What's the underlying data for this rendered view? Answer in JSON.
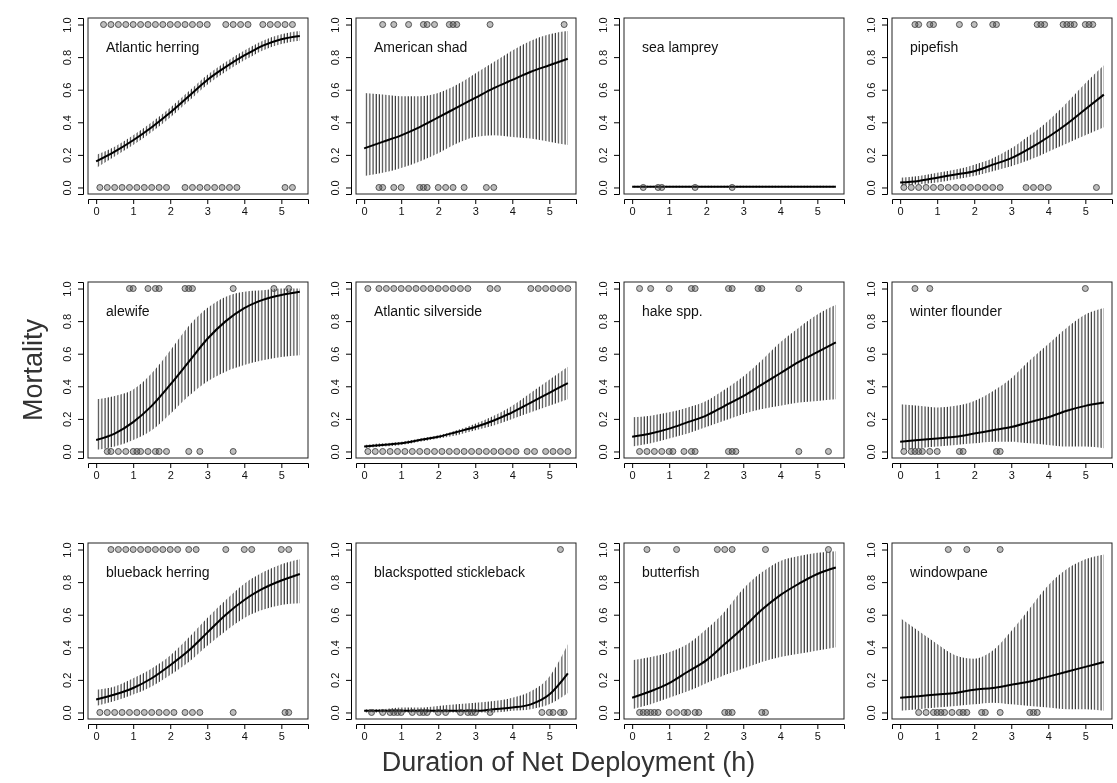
{
  "chart_data": [
    {
      "type": "line",
      "title": "Atlantic herring",
      "x": [
        0,
        0.5,
        1,
        1.5,
        2,
        2.5,
        3,
        3.5,
        4,
        4.5,
        5,
        5.5
      ],
      "xlim": [
        -0.22,
        5.72
      ],
      "ylim": [
        -0.04,
        1.04
      ],
      "xticks": [
        0,
        1,
        2,
        3,
        4,
        5
      ],
      "yticks": [
        {
          "value": 0,
          "label": "0.0"
        },
        {
          "value": 0.2,
          "label": "0.2"
        },
        {
          "value": 0.4,
          "label": "0.4"
        },
        {
          "value": 0.6,
          "label": "0.6"
        },
        {
          "value": 0.8,
          "label": "0.8"
        },
        {
          "value": 1,
          "label": "1.0"
        }
      ],
      "series": [
        {
          "type": "line",
          "color": "#000000",
          "marker": "none",
          "values": [
            0.16,
            0.22,
            0.29,
            0.37,
            0.46,
            0.56,
            0.66,
            0.74,
            0.81,
            0.87,
            0.91,
            0.93
          ],
          "lower": [
            0.12,
            0.19,
            0.26,
            0.34,
            0.43,
            0.53,
            0.63,
            0.71,
            0.78,
            0.84,
            0.88,
            0.9
          ],
          "upper": [
            0.2,
            0.25,
            0.32,
            0.4,
            0.49,
            0.59,
            0.69,
            0.77,
            0.84,
            0.9,
            0.94,
            0.96
          ]
        },
        {
          "type": "scatter",
          "color": "#444444",
          "marker": "circle",
          "x": [
            0.2,
            0.4,
            0.6,
            0.8,
            1.0,
            1.2,
            1.4,
            1.6,
            1.8,
            2.0,
            2.2,
            2.4,
            2.6,
            2.8,
            3.0,
            3.5,
            3.7,
            3.9,
            4.1,
            4.5,
            4.7,
            4.9,
            5.1,
            5.3
          ],
          "values": [
            1,
            1,
            1,
            1,
            1,
            1,
            1,
            1,
            1,
            1,
            1,
            1,
            1,
            1,
            1,
            1,
            1,
            1,
            1,
            1,
            1,
            1,
            1,
            1
          ]
        },
        {
          "type": "scatter",
          "color": "#444444",
          "marker": "circle",
          "x": [
            0.1,
            0.3,
            0.5,
            0.7,
            0.9,
            1.1,
            1.3,
            1.5,
            1.7,
            1.9,
            2.4,
            2.6,
            2.8,
            3.0,
            3.2,
            3.4,
            3.6,
            3.8,
            5.1,
            5.3
          ],
          "values": [
            0,
            0,
            0,
            0,
            0,
            0,
            0,
            0,
            0,
            0,
            0,
            0,
            0,
            0,
            0,
            0,
            0,
            0,
            0,
            0
          ]
        }
      ]
    },
    {
      "type": "line",
      "title": "American shad",
      "x": [
        0,
        0.5,
        1,
        1.5,
        2,
        2.5,
        3,
        3.5,
        4,
        4.5,
        5,
        5.5
      ],
      "xlim": [
        -0.22,
        5.72
      ],
      "ylim": [
        -0.04,
        1.04
      ],
      "xticks": [
        0,
        1,
        2,
        3,
        4,
        5
      ],
      "yticks": [
        {
          "value": 0,
          "label": "0.0"
        },
        {
          "value": 0.2,
          "label": "0.2"
        },
        {
          "value": 0.4,
          "label": "0.4"
        },
        {
          "value": 0.6,
          "label": "0.6"
        },
        {
          "value": 0.8,
          "label": "0.8"
        },
        {
          "value": 1,
          "label": "1.0"
        }
      ],
      "series": [
        {
          "type": "line",
          "color": "#000000",
          "marker": "none",
          "values": [
            0.24,
            0.28,
            0.32,
            0.37,
            0.43,
            0.49,
            0.55,
            0.61,
            0.66,
            0.71,
            0.75,
            0.79
          ],
          "lower": [
            0.07,
            0.09,
            0.12,
            0.16,
            0.21,
            0.27,
            0.31,
            0.32,
            0.31,
            0.3,
            0.28,
            0.26
          ],
          "upper": [
            0.58,
            0.57,
            0.56,
            0.56,
            0.58,
            0.63,
            0.7,
            0.77,
            0.84,
            0.9,
            0.94,
            0.96
          ]
        },
        {
          "type": "scatter",
          "color": "#444444",
          "marker": "circle",
          "x": [
            0.5,
            0.8,
            1.2,
            1.6,
            1.7,
            1.9,
            2.3,
            2.4,
            2.5,
            3.4,
            5.4
          ],
          "values": [
            1,
            1,
            1,
            1,
            1,
            1,
            1,
            1,
            1,
            1,
            1
          ]
        },
        {
          "type": "scatter",
          "color": "#444444",
          "marker": "circle",
          "x": [
            0.4,
            0.5,
            0.8,
            1.0,
            1.5,
            1.6,
            1.7,
            2.0,
            2.2,
            2.4,
            2.7,
            3.3,
            3.5
          ],
          "values": [
            0,
            0,
            0,
            0,
            0,
            0,
            0,
            0,
            0,
            0,
            0,
            0,
            0
          ]
        }
      ]
    },
    {
      "type": "line",
      "title": "sea lamprey",
      "x": [
        0,
        0.5,
        1,
        1.5,
        2,
        2.5,
        3,
        3.5,
        4,
        4.5,
        5,
        5.5
      ],
      "xlim": [
        -0.22,
        5.72
      ],
      "ylim": [
        -0.04,
        1.04
      ],
      "xticks": [
        0,
        1,
        2,
        3,
        4,
        5
      ],
      "yticks": [
        {
          "value": 0,
          "label": "0.0"
        },
        {
          "value": 0.2,
          "label": "0.2"
        },
        {
          "value": 0.4,
          "label": "0.4"
        },
        {
          "value": 0.6,
          "label": "0.6"
        },
        {
          "value": 0.8,
          "label": "0.8"
        },
        {
          "value": 1,
          "label": "1.0"
        }
      ],
      "series": [
        {
          "type": "line",
          "color": "#000000",
          "marker": "none",
          "values": [
            0.005,
            0.005,
            0.005,
            0.005,
            0.005,
            0.005,
            0.005,
            0.005,
            0.005,
            0.005,
            0.005,
            0.005
          ],
          "lower": [
            0,
            0,
            0,
            0,
            0,
            0,
            0,
            0,
            0,
            0,
            0,
            0
          ],
          "upper": [
            0.01,
            0.01,
            0.01,
            0.01,
            0.01,
            0.01,
            0.01,
            0.01,
            0.01,
            0.01,
            0.01,
            0.01
          ]
        },
        {
          "type": "scatter",
          "color": "#444444",
          "marker": "circle",
          "x": [
            0.3,
            0.7,
            0.8,
            1.7,
            2.7
          ],
          "values": [
            0,
            0,
            0,
            0,
            0
          ]
        }
      ]
    },
    {
      "type": "line",
      "title": "pipefish",
      "x": [
        0,
        0.5,
        1,
        1.5,
        2,
        2.5,
        3,
        3.5,
        4,
        4.5,
        5,
        5.5
      ],
      "xlim": [
        -0.22,
        5.72
      ],
      "ylim": [
        -0.04,
        1.04
      ],
      "xticks": [
        0,
        1,
        2,
        3,
        4,
        5
      ],
      "yticks": [
        {
          "value": 0,
          "label": "0.0"
        },
        {
          "value": 0.2,
          "label": "0.2"
        },
        {
          "value": 0.4,
          "label": "0.4"
        },
        {
          "value": 0.6,
          "label": "0.6"
        },
        {
          "value": 0.8,
          "label": "0.8"
        },
        {
          "value": 1,
          "label": "1.0"
        }
      ],
      "series": [
        {
          "type": "line",
          "color": "#000000",
          "marker": "none",
          "values": [
            0.03,
            0.04,
            0.06,
            0.08,
            0.1,
            0.14,
            0.18,
            0.24,
            0.31,
            0.39,
            0.48,
            0.57
          ],
          "lower": [
            0.01,
            0.02,
            0.03,
            0.05,
            0.07,
            0.1,
            0.13,
            0.17,
            0.22,
            0.27,
            0.32,
            0.37
          ],
          "upper": [
            0.06,
            0.07,
            0.09,
            0.11,
            0.14,
            0.18,
            0.24,
            0.32,
            0.41,
            0.52,
            0.64,
            0.75
          ]
        },
        {
          "type": "scatter",
          "color": "#444444",
          "marker": "circle",
          "x": [
            0.4,
            0.5,
            0.8,
            0.9,
            1.6,
            2.0,
            2.5,
            2.6,
            3.7,
            3.8,
            3.9,
            4.4,
            4.5,
            4.6,
            4.7,
            5.0,
            5.1,
            5.2
          ],
          "values": [
            1,
            1,
            1,
            1,
            1,
            1,
            1,
            1,
            1,
            1,
            1,
            1,
            1,
            1,
            1,
            1,
            1,
            1
          ]
        },
        {
          "type": "scatter",
          "color": "#444444",
          "marker": "circle",
          "x": [
            0.1,
            0.3,
            0.5,
            0.7,
            0.9,
            1.1,
            1.3,
            1.5,
            1.7,
            1.9,
            2.1,
            2.3,
            2.5,
            2.7,
            3.4,
            3.6,
            3.8,
            4.0,
            5.3
          ],
          "values": [
            0,
            0,
            0,
            0,
            0,
            0,
            0,
            0,
            0,
            0,
            0,
            0,
            0,
            0,
            0,
            0,
            0,
            0,
            0
          ]
        }
      ]
    },
    {
      "type": "line",
      "title": "alewife",
      "ylabel": "Mortality",
      "x": [
        0,
        0.5,
        1,
        1.5,
        2,
        2.5,
        3,
        3.5,
        4,
        4.5,
        5,
        5.5
      ],
      "xlim": [
        -0.22,
        5.72
      ],
      "ylim": [
        -0.04,
        1.04
      ],
      "xticks": [
        0,
        1,
        2,
        3,
        4,
        5
      ],
      "yticks": [
        {
          "value": 0,
          "label": "0.0"
        },
        {
          "value": 0.2,
          "label": "0.2"
        },
        {
          "value": 0.4,
          "label": "0.4"
        },
        {
          "value": 0.6,
          "label": "0.6"
        },
        {
          "value": 0.8,
          "label": "0.8"
        },
        {
          "value": 1,
          "label": "1.0"
        }
      ],
      "series": [
        {
          "type": "line",
          "color": "#000000",
          "marker": "none",
          "values": [
            0.07,
            0.11,
            0.18,
            0.28,
            0.41,
            0.55,
            0.69,
            0.8,
            0.88,
            0.93,
            0.96,
            0.98
          ],
          "lower": [
            0.01,
            0.03,
            0.07,
            0.13,
            0.23,
            0.34,
            0.43,
            0.49,
            0.53,
            0.56,
            0.58,
            0.59
          ],
          "upper": [
            0.32,
            0.34,
            0.38,
            0.48,
            0.62,
            0.77,
            0.88,
            0.95,
            0.98,
            0.99,
            1.0,
            1.0
          ]
        },
        {
          "type": "scatter",
          "color": "#444444",
          "marker": "circle",
          "x": [
            0.9,
            1.0,
            1.4,
            1.6,
            1.7,
            2.4,
            2.5,
            2.6,
            3.7,
            4.8,
            5.2
          ],
          "values": [
            1,
            1,
            1,
            1,
            1,
            1,
            1,
            1,
            1,
            1,
            1
          ]
        },
        {
          "type": "scatter",
          "color": "#444444",
          "marker": "circle",
          "x": [
            0.3,
            0.4,
            0.6,
            0.8,
            1.0,
            1.1,
            1.2,
            1.4,
            1.6,
            1.7,
            1.9,
            2.5,
            2.8,
            3.7
          ],
          "values": [
            0,
            0,
            0,
            0,
            0,
            0,
            0,
            0,
            0,
            0,
            0,
            0,
            0,
            0
          ]
        }
      ]
    },
    {
      "type": "line",
      "title": "Atlantic silverside",
      "x": [
        0,
        0.5,
        1,
        1.5,
        2,
        2.5,
        3,
        3.5,
        4,
        4.5,
        5,
        5.5
      ],
      "xlim": [
        -0.22,
        5.72
      ],
      "ylim": [
        -0.04,
        1.04
      ],
      "xticks": [
        0,
        1,
        2,
        3,
        4,
        5
      ],
      "yticks": [
        {
          "value": 0,
          "label": "0.0"
        },
        {
          "value": 0.2,
          "label": "0.2"
        },
        {
          "value": 0.4,
          "label": "0.4"
        },
        {
          "value": 0.6,
          "label": "0.6"
        },
        {
          "value": 0.8,
          "label": "0.8"
        },
        {
          "value": 1,
          "label": "1.0"
        }
      ],
      "series": [
        {
          "type": "line",
          "color": "#000000",
          "marker": "none",
          "values": [
            0.03,
            0.04,
            0.05,
            0.07,
            0.09,
            0.12,
            0.15,
            0.19,
            0.24,
            0.3,
            0.36,
            0.42
          ],
          "lower": [
            0.02,
            0.03,
            0.04,
            0.06,
            0.08,
            0.1,
            0.13,
            0.16,
            0.2,
            0.24,
            0.28,
            0.32
          ],
          "upper": [
            0.04,
            0.05,
            0.06,
            0.08,
            0.1,
            0.13,
            0.17,
            0.22,
            0.28,
            0.36,
            0.44,
            0.52
          ]
        },
        {
          "type": "scatter",
          "color": "#444444",
          "marker": "circle",
          "x": [
            0.1,
            0.4,
            0.6,
            0.8,
            1.0,
            1.2,
            1.4,
            1.6,
            1.8,
            2.0,
            2.2,
            2.4,
            2.6,
            2.8,
            3.4,
            3.6,
            4.5,
            4.7,
            4.9,
            5.1,
            5.3,
            5.5
          ],
          "values": [
            1,
            1,
            1,
            1,
            1,
            1,
            1,
            1,
            1,
            1,
            1,
            1,
            1,
            1,
            1,
            1,
            1,
            1,
            1,
            1,
            1,
            1
          ]
        },
        {
          "type": "scatter",
          "color": "#444444",
          "marker": "circle",
          "x": [
            0.1,
            0.3,
            0.5,
            0.7,
            0.9,
            1.1,
            1.3,
            1.5,
            1.7,
            1.9,
            2.1,
            2.3,
            2.5,
            2.7,
            2.9,
            3.1,
            3.3,
            3.5,
            3.7,
            3.9,
            4.1,
            4.4,
            4.6,
            4.9,
            5.1,
            5.3,
            5.5
          ],
          "values": [
            0,
            0,
            0,
            0,
            0,
            0,
            0,
            0,
            0,
            0,
            0,
            0,
            0,
            0,
            0,
            0,
            0,
            0,
            0,
            0,
            0,
            0,
            0,
            0,
            0,
            0,
            0
          ]
        }
      ]
    },
    {
      "type": "line",
      "title": "hake spp.",
      "x": [
        0,
        0.5,
        1,
        1.5,
        2,
        2.5,
        3,
        3.5,
        4,
        4.5,
        5,
        5.5
      ],
      "xlim": [
        -0.22,
        5.72
      ],
      "ylim": [
        -0.04,
        1.04
      ],
      "xticks": [
        0,
        1,
        2,
        3,
        4,
        5
      ],
      "yticks": [
        {
          "value": 0,
          "label": "0.0"
        },
        {
          "value": 0.2,
          "label": "0.2"
        },
        {
          "value": 0.4,
          "label": "0.4"
        },
        {
          "value": 0.6,
          "label": "0.6"
        },
        {
          "value": 0.8,
          "label": "0.8"
        },
        {
          "value": 1,
          "label": "1.0"
        }
      ],
      "series": [
        {
          "type": "line",
          "color": "#000000",
          "marker": "none",
          "values": [
            0.09,
            0.11,
            0.14,
            0.18,
            0.22,
            0.28,
            0.34,
            0.41,
            0.48,
            0.55,
            0.61,
            0.67
          ],
          "lower": [
            0.03,
            0.05,
            0.08,
            0.11,
            0.15,
            0.19,
            0.23,
            0.26,
            0.28,
            0.3,
            0.31,
            0.32
          ],
          "upper": [
            0.21,
            0.22,
            0.24,
            0.27,
            0.31,
            0.38,
            0.46,
            0.56,
            0.67,
            0.76,
            0.84,
            0.9
          ]
        },
        {
          "type": "scatter",
          "color": "#444444",
          "marker": "circle",
          "x": [
            0.2,
            0.5,
            1.0,
            1.6,
            1.7,
            2.6,
            2.7,
            3.4,
            3.5,
            4.5
          ],
          "values": [
            1,
            1,
            1,
            1,
            1,
            1,
            1,
            1,
            1,
            1
          ]
        },
        {
          "type": "scatter",
          "color": "#444444",
          "marker": "circle",
          "x": [
            0.2,
            0.4,
            0.6,
            0.8,
            1.0,
            1.1,
            1.4,
            1.6,
            1.7,
            2.6,
            2.7,
            2.8,
            4.5,
            5.3
          ],
          "values": [
            0,
            0,
            0,
            0,
            0,
            0,
            0,
            0,
            0,
            0,
            0,
            0,
            0,
            0
          ]
        }
      ]
    },
    {
      "type": "line",
      "title": "winter flounder",
      "x": [
        0,
        0.5,
        1,
        1.5,
        2,
        2.5,
        3,
        3.5,
        4,
        4.5,
        5,
        5.5
      ],
      "xlim": [
        -0.22,
        5.72
      ],
      "ylim": [
        -0.04,
        1.04
      ],
      "xticks": [
        0,
        1,
        2,
        3,
        4,
        5
      ],
      "yticks": [
        {
          "value": 0,
          "label": "0.0"
        },
        {
          "value": 0.2,
          "label": "0.2"
        },
        {
          "value": 0.4,
          "label": "0.4"
        },
        {
          "value": 0.6,
          "label": "0.6"
        },
        {
          "value": 0.8,
          "label": "0.8"
        },
        {
          "value": 1,
          "label": "1.0"
        }
      ],
      "series": [
        {
          "type": "line",
          "color": "#000000",
          "marker": "none",
          "values": [
            0.06,
            0.07,
            0.08,
            0.09,
            0.11,
            0.13,
            0.15,
            0.18,
            0.21,
            0.25,
            0.28,
            0.3
          ],
          "lower": [
            0.01,
            0.02,
            0.03,
            0.04,
            0.05,
            0.06,
            0.06,
            0.05,
            0.04,
            0.03,
            0.03,
            0.02
          ],
          "upper": [
            0.29,
            0.28,
            0.27,
            0.28,
            0.31,
            0.37,
            0.45,
            0.56,
            0.66,
            0.76,
            0.84,
            0.88
          ]
        },
        {
          "type": "scatter",
          "color": "#444444",
          "marker": "circle",
          "x": [
            0.4,
            0.8,
            5.0
          ],
          "values": [
            1,
            1,
            1
          ]
        },
        {
          "type": "scatter",
          "color": "#444444",
          "marker": "circle",
          "x": [
            0.1,
            0.3,
            0.4,
            0.5,
            0.6,
            0.8,
            1.0,
            1.6,
            1.7,
            2.6,
            2.7
          ],
          "values": [
            0,
            0,
            0,
            0,
            0,
            0,
            0,
            0,
            0,
            0,
            0
          ]
        }
      ]
    },
    {
      "type": "line",
      "title": "blueback herring",
      "x": [
        0,
        0.5,
        1,
        1.5,
        2,
        2.5,
        3,
        3.5,
        4,
        4.5,
        5,
        5.5
      ],
      "xlim": [
        -0.22,
        5.72
      ],
      "ylim": [
        -0.04,
        1.04
      ],
      "xticks": [
        0,
        1,
        2,
        3,
        4,
        5
      ],
      "yticks": [
        {
          "value": 0,
          "label": "0.0"
        },
        {
          "value": 0.2,
          "label": "0.2"
        },
        {
          "value": 0.4,
          "label": "0.4"
        },
        {
          "value": 0.6,
          "label": "0.6"
        },
        {
          "value": 0.8,
          "label": "0.8"
        },
        {
          "value": 1,
          "label": "1.0"
        }
      ],
      "series": [
        {
          "type": "line",
          "color": "#000000",
          "marker": "none",
          "values": [
            0.08,
            0.11,
            0.15,
            0.21,
            0.29,
            0.38,
            0.49,
            0.6,
            0.69,
            0.76,
            0.81,
            0.85
          ],
          "lower": [
            0.04,
            0.07,
            0.11,
            0.16,
            0.23,
            0.31,
            0.41,
            0.5,
            0.58,
            0.63,
            0.66,
            0.67
          ],
          "upper": [
            0.14,
            0.16,
            0.21,
            0.27,
            0.35,
            0.46,
            0.58,
            0.69,
            0.79,
            0.86,
            0.91,
            0.94
          ]
        },
        {
          "type": "scatter",
          "color": "#444444",
          "marker": "circle",
          "x": [
            0.4,
            0.6,
            0.8,
            1.0,
            1.2,
            1.4,
            1.6,
            1.8,
            2.0,
            2.2,
            2.5,
            2.7,
            3.5,
            4.0,
            4.2,
            5.0,
            5.2
          ],
          "values": [
            1,
            1,
            1,
            1,
            1,
            1,
            1,
            1,
            1,
            1,
            1,
            1,
            1,
            1,
            1,
            1,
            1
          ]
        },
        {
          "type": "scatter",
          "color": "#444444",
          "marker": "circle",
          "x": [
            0.1,
            0.3,
            0.5,
            0.7,
            0.9,
            1.1,
            1.3,
            1.5,
            1.7,
            1.9,
            2.1,
            2.4,
            2.6,
            2.8,
            3.7,
            5.1,
            5.2
          ],
          "values": [
            0,
            0,
            0,
            0,
            0,
            0,
            0,
            0,
            0,
            0,
            0,
            0,
            0,
            0,
            0,
            0,
            0
          ]
        }
      ]
    },
    {
      "type": "line",
      "title": "blackspotted stickleback",
      "xlabel": "Duration of Net Deployment (h)",
      "x": [
        0,
        0.5,
        1,
        1.5,
        2,
        2.5,
        3,
        3.5,
        4,
        4.5,
        5,
        5.5
      ],
      "xlim": [
        -0.22,
        5.72
      ],
      "ylim": [
        -0.04,
        1.04
      ],
      "xticks": [
        0,
        1,
        2,
        3,
        4,
        5
      ],
      "yticks": [
        {
          "value": 0,
          "label": "0.0"
        },
        {
          "value": 0.2,
          "label": "0.2"
        },
        {
          "value": 0.4,
          "label": "0.4"
        },
        {
          "value": 0.6,
          "label": "0.6"
        },
        {
          "value": 0.8,
          "label": "0.8"
        },
        {
          "value": 1,
          "label": "1.0"
        }
      ],
      "series": [
        {
          "type": "line",
          "color": "#000000",
          "marker": "none",
          "values": [
            0.01,
            0.01,
            0.01,
            0.01,
            0.01,
            0.01,
            0.01,
            0.02,
            0.03,
            0.05,
            0.11,
            0.24
          ],
          "lower": [
            0,
            0,
            0,
            0,
            0,
            0,
            0,
            0,
            0.01,
            0.02,
            0.05,
            0.12
          ],
          "upper": [
            0.02,
            0.02,
            0.03,
            0.03,
            0.04,
            0.05,
            0.06,
            0.07,
            0.09,
            0.13,
            0.22,
            0.42
          ]
        },
        {
          "type": "scatter",
          "color": "#444444",
          "marker": "circle",
          "x": [
            5.3
          ],
          "values": [
            1
          ]
        },
        {
          "type": "scatter",
          "color": "#444444",
          "marker": "circle",
          "x": [
            0.2,
            0.5,
            0.7,
            0.8,
            0.9,
            1.0,
            1.3,
            1.5,
            1.6,
            1.7,
            2.0,
            2.2,
            2.6,
            2.8,
            2.9,
            3.0,
            3.4,
            4.8,
            5.0,
            5.1,
            5.3,
            5.4
          ],
          "values": [
            0,
            0,
            0,
            0,
            0,
            0,
            0,
            0,
            0,
            0,
            0,
            0,
            0,
            0,
            0,
            0,
            0,
            0,
            0,
            0,
            0,
            0
          ]
        }
      ]
    },
    {
      "type": "line",
      "title": "butterfish",
      "x": [
        0,
        0.5,
        1,
        1.5,
        2,
        2.5,
        3,
        3.5,
        4,
        4.5,
        5,
        5.5
      ],
      "xlim": [
        -0.22,
        5.72
      ],
      "ylim": [
        -0.04,
        1.04
      ],
      "xticks": [
        0,
        1,
        2,
        3,
        4,
        5
      ],
      "yticks": [
        {
          "value": 0,
          "label": "0.0"
        },
        {
          "value": 0.2,
          "label": "0.2"
        },
        {
          "value": 0.4,
          "label": "0.4"
        },
        {
          "value": 0.6,
          "label": "0.6"
        },
        {
          "value": 0.8,
          "label": "0.8"
        },
        {
          "value": 1,
          "label": "1.0"
        }
      ],
      "series": [
        {
          "type": "line",
          "color": "#000000",
          "marker": "none",
          "values": [
            0.09,
            0.13,
            0.18,
            0.25,
            0.32,
            0.42,
            0.52,
            0.63,
            0.72,
            0.79,
            0.85,
            0.89
          ],
          "lower": [
            0.02,
            0.05,
            0.09,
            0.13,
            0.18,
            0.23,
            0.27,
            0.31,
            0.34,
            0.36,
            0.38,
            0.4
          ],
          "upper": [
            0.32,
            0.34,
            0.37,
            0.42,
            0.51,
            0.62,
            0.76,
            0.86,
            0.93,
            0.96,
            0.98,
            0.99
          ]
        },
        {
          "type": "scatter",
          "color": "#444444",
          "marker": "circle",
          "x": [
            0.4,
            1.2,
            2.3,
            2.5,
            2.7,
            3.6,
            5.3
          ],
          "values": [
            1,
            1,
            1,
            1,
            1,
            1,
            1
          ]
        },
        {
          "type": "scatter",
          "color": "#444444",
          "marker": "circle",
          "x": [
            0.2,
            0.3,
            0.4,
            0.5,
            0.6,
            0.7,
            1.0,
            1.2,
            1.4,
            1.5,
            1.7,
            1.8,
            2.5,
            2.6,
            2.7,
            3.5,
            3.6
          ],
          "values": [
            0,
            0,
            0,
            0,
            0,
            0,
            0,
            0,
            0,
            0,
            0,
            0,
            0,
            0,
            0,
            0,
            0
          ]
        }
      ]
    },
    {
      "type": "line",
      "title": "windowpane",
      "x": [
        0,
        0.5,
        1,
        1.5,
        2,
        2.5,
        3,
        3.5,
        4,
        4.5,
        5,
        5.5
      ],
      "xlim": [
        -0.22,
        5.72
      ],
      "ylim": [
        -0.04,
        1.04
      ],
      "xticks": [
        0,
        1,
        2,
        3,
        4,
        5
      ],
      "yticks": [
        {
          "value": 0,
          "label": "0.0"
        },
        {
          "value": 0.2,
          "label": "0.2"
        },
        {
          "value": 0.4,
          "label": "0.4"
        },
        {
          "value": 0.6,
          "label": "0.6"
        },
        {
          "value": 0.8,
          "label": "0.8"
        },
        {
          "value": 1,
          "label": "1.0"
        }
      ],
      "series": [
        {
          "type": "line",
          "color": "#000000",
          "marker": "none",
          "values": [
            0.09,
            0.1,
            0.11,
            0.12,
            0.14,
            0.15,
            0.17,
            0.19,
            0.22,
            0.25,
            0.28,
            0.31
          ],
          "lower": [
            0.01,
            0.02,
            0.03,
            0.04,
            0.05,
            0.06,
            0.05,
            0.04,
            0.03,
            0.02,
            0.02,
            0.01
          ],
          "upper": [
            0.58,
            0.5,
            0.42,
            0.35,
            0.33,
            0.38,
            0.5,
            0.64,
            0.78,
            0.88,
            0.94,
            0.97
          ]
        },
        {
          "type": "scatter",
          "color": "#444444",
          "marker": "circle",
          "x": [
            1.3,
            1.8,
            2.7
          ],
          "values": [
            1,
            1,
            1
          ]
        },
        {
          "type": "scatter",
          "color": "#444444",
          "marker": "circle",
          "x": [
            0.5,
            0.7,
            0.9,
            1.0,
            1.1,
            1.2,
            1.4,
            1.6,
            1.7,
            1.8,
            2.2,
            2.3,
            2.7,
            3.5,
            3.6,
            3.7
          ],
          "values": [
            0,
            0,
            0,
            0,
            0,
            0,
            0,
            0,
            0,
            0,
            0,
            0,
            0,
            0,
            0,
            0
          ]
        }
      ]
    }
  ]
}
